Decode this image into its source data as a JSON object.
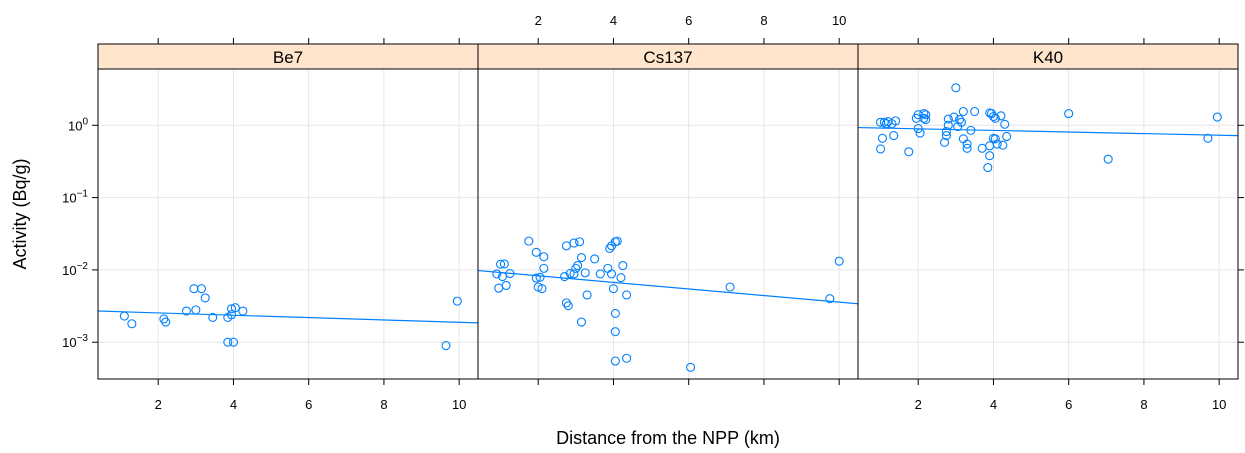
{
  "chart_data": {
    "type": "scatter",
    "xlabel": "Distance from the NPP (km)",
    "ylabel": "Activity (Bq/g)",
    "y_scale": "log",
    "xlim": [
      0.4,
      10.5
    ],
    "ylim": [
      0.00031,
      6.0
    ],
    "x_ticks": [
      2,
      4,
      6,
      8,
      10
    ],
    "y_ticks": [
      {
        "value": 0.001,
        "base": "10",
        "exp": "−3"
      },
      {
        "value": 0.01,
        "base": "10",
        "exp": "−2"
      },
      {
        "value": 0.1,
        "base": "10",
        "exp": "−1"
      },
      {
        "value": 1,
        "base": "10",
        "exp": "0"
      }
    ],
    "grid": true,
    "point_color": "#0080ff",
    "line_color": "#0080ff",
    "strip_color": "#ffe5cc",
    "panels": [
      {
        "name": "Be7",
        "x_axis": "bottom",
        "trend": [
          [
            0.4,
            0.0027
          ],
          [
            10.5,
            0.00185
          ]
        ],
        "points": [
          [
            1.1,
            0.0023
          ],
          [
            1.3,
            0.0018
          ],
          [
            2.15,
            0.0021
          ],
          [
            2.2,
            0.0019
          ],
          [
            2.75,
            0.0027
          ],
          [
            2.95,
            0.0055
          ],
          [
            3.0,
            0.0028
          ],
          [
            3.15,
            0.0055
          ],
          [
            3.25,
            0.0041
          ],
          [
            3.45,
            0.0022
          ],
          [
            3.85,
            0.001
          ],
          [
            3.85,
            0.0022
          ],
          [
            3.95,
            0.0029
          ],
          [
            3.95,
            0.0024
          ],
          [
            4.0,
            0.001
          ],
          [
            4.05,
            0.003
          ],
          [
            4.25,
            0.0027
          ],
          [
            9.65,
            0.0009
          ],
          [
            9.95,
            0.0037
          ]
        ]
      },
      {
        "name": "Cs137",
        "x_axis": "top",
        "trend": [
          [
            0.4,
            0.0098
          ],
          [
            10.5,
            0.0034
          ]
        ],
        "points": [
          [
            0.9,
            0.0088
          ],
          [
            0.95,
            0.0056
          ],
          [
            1.0,
            0.012
          ],
          [
            1.05,
            0.0081
          ],
          [
            1.1,
            0.0121
          ],
          [
            1.15,
            0.0061
          ],
          [
            1.25,
            0.0089
          ],
          [
            1.75,
            0.025
          ],
          [
            1.95,
            0.0175
          ],
          [
            1.95,
            0.0077
          ],
          [
            2.0,
            0.0058
          ],
          [
            2.05,
            0.0079
          ],
          [
            2.1,
            0.0055
          ],
          [
            2.15,
            0.0105
          ],
          [
            2.15,
            0.0152
          ],
          [
            2.7,
            0.0081
          ],
          [
            2.75,
            0.0035
          ],
          [
            2.75,
            0.0215
          ],
          [
            2.8,
            0.0032
          ],
          [
            2.85,
            0.0089
          ],
          [
            2.95,
            0.0088
          ],
          [
            2.95,
            0.0235
          ],
          [
            3.0,
            0.0105
          ],
          [
            3.05,
            0.0115
          ],
          [
            3.1,
            0.0245
          ],
          [
            3.15,
            0.0019
          ],
          [
            3.15,
            0.0148
          ],
          [
            3.25,
            0.0091
          ],
          [
            3.3,
            0.0045
          ],
          [
            3.5,
            0.0142
          ],
          [
            3.65,
            0.0088
          ],
          [
            3.85,
            0.0105
          ],
          [
            3.9,
            0.0198
          ],
          [
            3.95,
            0.0088
          ],
          [
            3.95,
            0.0215
          ],
          [
            4.0,
            0.0055
          ],
          [
            4.05,
            0.0014
          ],
          [
            4.05,
            0.00055
          ],
          [
            4.05,
            0.0025
          ],
          [
            4.05,
            0.0245
          ],
          [
            4.1,
            0.025
          ],
          [
            4.2,
            0.0078
          ],
          [
            4.25,
            0.0115
          ],
          [
            4.35,
            0.0045
          ],
          [
            4.35,
            0.0006
          ],
          [
            6.05,
            0.00045
          ],
          [
            7.1,
            0.0058
          ],
          [
            9.75,
            0.004
          ],
          [
            10.0,
            0.0132
          ]
        ]
      },
      {
        "name": "K40",
        "x_axis": "bottom",
        "trend": [
          [
            0.4,
            0.93
          ],
          [
            10.5,
            0.72
          ]
        ],
        "points": [
          [
            1.0,
            1.1
          ],
          [
            1.0,
            0.47
          ],
          [
            1.05,
            0.66
          ],
          [
            1.1,
            1.1
          ],
          [
            1.15,
            1.05
          ],
          [
            1.2,
            1.12
          ],
          [
            1.3,
            1.05
          ],
          [
            1.35,
            0.72
          ],
          [
            1.4,
            1.15
          ],
          [
            1.75,
            0.43
          ],
          [
            1.95,
            1.25
          ],
          [
            2.0,
            1.4
          ],
          [
            2.0,
            0.9
          ],
          [
            2.05,
            0.78
          ],
          [
            2.15,
            1.25
          ],
          [
            2.15,
            1.45
          ],
          [
            2.2,
            1.2
          ],
          [
            2.2,
            1.4
          ],
          [
            2.7,
            0.58
          ],
          [
            2.75,
            0.82
          ],
          [
            2.75,
            0.72
          ],
          [
            2.8,
            1.0
          ],
          [
            2.8,
            1.22
          ],
          [
            2.95,
            1.3
          ],
          [
            3.0,
            3.3
          ],
          [
            3.05,
            0.96
          ],
          [
            3.1,
            1.2
          ],
          [
            3.15,
            1.1
          ],
          [
            3.2,
            1.55
          ],
          [
            3.2,
            0.65
          ],
          [
            3.3,
            0.55
          ],
          [
            3.3,
            0.48
          ],
          [
            3.4,
            0.85
          ],
          [
            3.5,
            1.55
          ],
          [
            3.7,
            0.48
          ],
          [
            3.85,
            0.26
          ],
          [
            3.9,
            0.38
          ],
          [
            3.9,
            0.52
          ],
          [
            3.9,
            1.48
          ],
          [
            3.95,
            1.45
          ],
          [
            4.0,
            0.66
          ],
          [
            4.0,
            1.32
          ],
          [
            4.05,
            0.65
          ],
          [
            4.05,
            1.25
          ],
          [
            4.1,
            0.55
          ],
          [
            4.2,
            1.35
          ],
          [
            4.25,
            0.53
          ],
          [
            4.3,
            1.03
          ],
          [
            4.35,
            0.7
          ],
          [
            6.0,
            1.45
          ],
          [
            7.05,
            0.34
          ],
          [
            9.7,
            0.66
          ],
          [
            9.95,
            1.3
          ]
        ]
      }
    ]
  }
}
